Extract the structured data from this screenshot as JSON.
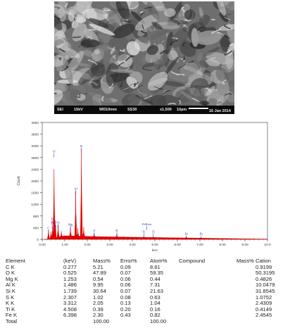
{
  "sem": {
    "info": {
      "detector": "SEI",
      "voltage": "15kV",
      "wd": "WD10mm",
      "ss": "SS30",
      "magnification": "x1,500",
      "scale": "10µm",
      "date": "16 Jan 2014"
    }
  },
  "chart_data": {
    "type": "line",
    "ylabel": "Count",
    "xlabel": "keV",
    "xlim": [
      0,
      10
    ],
    "ylim": [
      0,
      4000
    ],
    "x_ticks": [
      "0.00",
      "1.00",
      "2.00",
      "3.00",
      "4.00",
      "5.00",
      "6.00",
      "7.00",
      "8.00",
      "9.00",
      "10.0"
    ],
    "y_ticks": [
      "0",
      "400",
      "800",
      "1200",
      "1600",
      "2000",
      "2400",
      "2800",
      "3200",
      "3600",
      "4000"
    ],
    "peaks": [
      {
        "kev": 0.277,
        "count": 320
      },
      {
        "kev": 0.39,
        "count": 260
      },
      {
        "kev": 0.46,
        "count": 420
      },
      {
        "kev": 0.525,
        "count": 2400
      },
      {
        "kev": 0.58,
        "count": 650
      },
      {
        "kev": 0.705,
        "count": 500
      },
      {
        "kev": 0.85,
        "count": 280
      },
      {
        "kev": 1.253,
        "count": 420
      },
      {
        "kev": 1.486,
        "count": 1650
      },
      {
        "kev": 1.58,
        "count": 380
      },
      {
        "kev": 1.739,
        "count": 3100
      },
      {
        "kev": 1.84,
        "count": 420
      },
      {
        "kev": 2.307,
        "count": 220
      },
      {
        "kev": 2.46,
        "count": 90
      },
      {
        "kev": 3.312,
        "count": 200
      },
      {
        "kev": 3.59,
        "count": 90
      },
      {
        "kev": 4.508,
        "count": 110
      },
      {
        "kev": 4.93,
        "count": 80
      },
      {
        "kev": 6.398,
        "count": 95
      },
      {
        "kev": 7.058,
        "count": 60
      }
    ],
    "labels": [
      {
        "text": "Si",
        "kev": 1.739,
        "count": 3130
      },
      {
        "text": "O",
        "kev": 0.525,
        "count": 2950
      },
      {
        "text": "Al",
        "kev": 1.486,
        "count": 1680
      },
      {
        "text": "Mg",
        "kev": 1.253,
        "count": 450
      },
      {
        "text": "C",
        "kev": 0.277,
        "count": 330
      },
      {
        "text": "Ti",
        "kev": 0.44,
        "count": 640
      },
      {
        "text": "Ti",
        "kev": 0.44,
        "count": 520
      },
      {
        "text": "Fe",
        "kev": 0.705,
        "count": 520
      },
      {
        "text": "K",
        "kev": 0.6,
        "count": 380
      },
      {
        "text": "S",
        "kev": 2.307,
        "count": 240
      },
      {
        "text": "K",
        "kev": 3.312,
        "count": 240
      },
      {
        "text": "FeKesc",
        "kev": 4.65,
        "count": 460
      },
      {
        "text": "Ti",
        "kev": 4.51,
        "count": 210
      },
      {
        "text": "Ti",
        "kev": 4.93,
        "count": 210
      },
      {
        "text": "Fe",
        "kev": 6.398,
        "count": 130
      },
      {
        "text": "Fe",
        "kev": 7.058,
        "count": 130
      }
    ],
    "colors": {
      "spectrum": "#e00000",
      "label": "#1a1ab0",
      "axis": "#333333"
    }
  },
  "table": {
    "headers": [
      "Element",
      "(keV)",
      "Mass%",
      "Error%",
      "Atom%",
      "Compound",
      "Mass%",
      "Cation"
    ],
    "rows": [
      [
        "C K",
        "0.277",
        "5.21",
        "0.09",
        "8.61",
        "",
        "",
        "0.9199"
      ],
      [
        "O K",
        "0.525",
        "47.89",
        "0.07",
        "59.35",
        "",
        "",
        "50.3195"
      ],
      [
        "Mg K",
        "1.253",
        "0.54",
        "0.06",
        "0.44",
        "",
        "",
        "0.4826"
      ],
      [
        "Al K",
        "1.486",
        "9.95",
        "0.06",
        "7.31",
        "",
        "",
        "10.0479"
      ],
      [
        "Si K",
        "1.739",
        "30.64",
        "0.07",
        "21.63",
        "",
        "",
        "31.8545"
      ],
      [
        "S K",
        "2.307",
        "1.02",
        "0.08",
        "0.63",
        "",
        "",
        "1.0752"
      ],
      [
        "K K",
        "3.312",
        "2.05",
        "0.13",
        "1.04",
        "",
        "",
        "2.4309"
      ],
      [
        "Ti K",
        "4.508",
        "0.39",
        "0.20",
        "0.16",
        "",
        "",
        "0.4149"
      ],
      [
        "Fe K",
        "6.398",
        "2.30",
        "0.43",
        "0.82",
        "",
        "",
        "2.4545"
      ],
      [
        "Total",
        "",
        "100.00",
        "",
        "100.00",
        "",
        "",
        ""
      ]
    ]
  }
}
